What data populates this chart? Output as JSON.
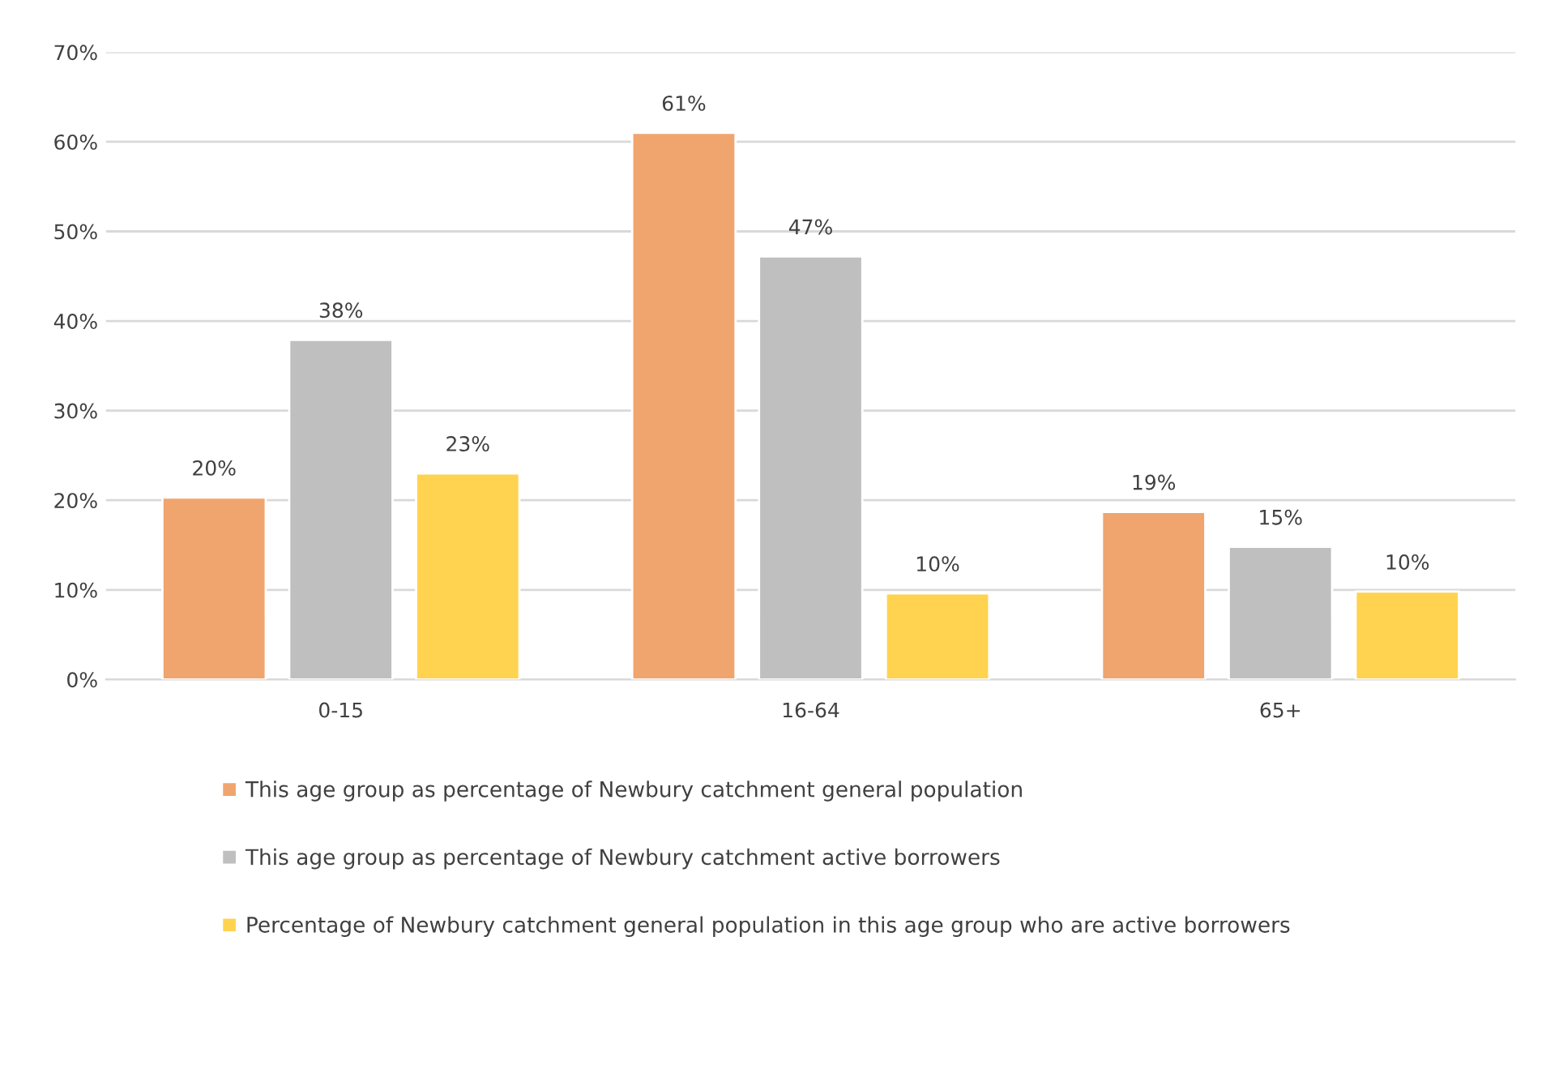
{
  "chart_data": {
    "type": "bar",
    "categories": [
      "0-15",
      "16-64",
      "65+"
    ],
    "series": [
      {
        "name": "This age group as percentage of Newbury catchment general population",
        "color": "#f0a46e",
        "values": [
          20.3,
          61,
          18.7
        ],
        "value_labels": [
          "20%",
          "61%",
          "19%"
        ]
      },
      {
        "name": "This age group as percentage of Newbury catchment active borrowers",
        "color": "#bfbfbf",
        "values": [
          37.9,
          47.2,
          14.8
        ],
        "value_labels": [
          "38%",
          "47%",
          "15%"
        ]
      },
      {
        "name": "Percentage of Newbury catchment general population in this age group who are active borrowers",
        "color": "#ffd34f",
        "values": [
          23,
          9.6,
          9.8
        ],
        "value_labels": [
          "23%",
          "10%",
          "10%"
        ]
      }
    ],
    "ylim": [
      0,
      70
    ],
    "yticks": [
      {
        "value": 0,
        "label": "0%"
      },
      {
        "value": 10,
        "label": "10%"
      },
      {
        "value": 20,
        "label": "20%"
      },
      {
        "value": 30,
        "label": "30%"
      },
      {
        "value": 40,
        "label": "40%"
      },
      {
        "value": 50,
        "label": "50%"
      },
      {
        "value": 60,
        "label": "60%"
      },
      {
        "value": 70,
        "label": "70%"
      }
    ],
    "grid": "y",
    "legend": "bottom"
  }
}
